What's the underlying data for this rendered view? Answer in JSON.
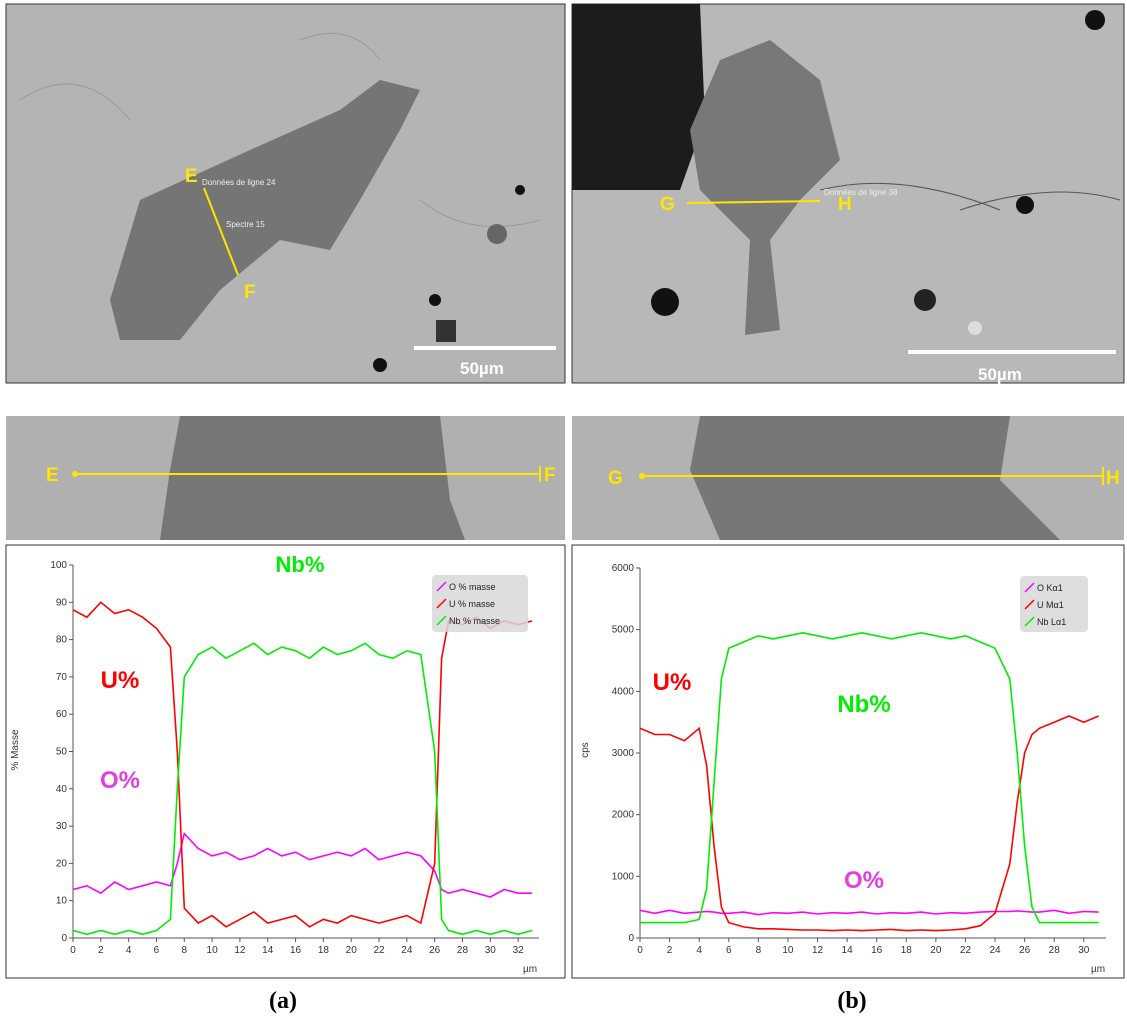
{
  "images": [
    {
      "start": "E",
      "end": "F",
      "line_label": "Données de ligne 24",
      "spectrum_label": "Spectre 15",
      "scale_bar": "50µm"
    },
    {
      "start": "G",
      "end": "H",
      "line_label": "Données de ligne 38",
      "scale_bar": "50µm"
    }
  ],
  "strips": [
    {
      "start": "E",
      "end": "F"
    },
    {
      "start": "G",
      "end": "H"
    }
  ],
  "captions": [
    "(a)",
    "(b)"
  ],
  "chart_data": [
    {
      "type": "line",
      "ylabel": "% Masse",
      "xlabel": "µm",
      "xlim": [
        0,
        33.5
      ],
      "ylim": [
        0,
        100
      ],
      "xticks": [
        0,
        2,
        4,
        6,
        8,
        10,
        12,
        14,
        16,
        18,
        20,
        22,
        24,
        26,
        28,
        30,
        32
      ],
      "yticks": [
        0,
        10,
        20,
        30,
        40,
        50,
        60,
        70,
        80,
        90,
        100
      ],
      "x": [
        0,
        1,
        2,
        3,
        4,
        5,
        6,
        7,
        7.5,
        8,
        9,
        10,
        11,
        12,
        13,
        14,
        15,
        16,
        17,
        18,
        19,
        20,
        21,
        22,
        23,
        24,
        25,
        26,
        26.5,
        27,
        28,
        29,
        30,
        31,
        32,
        33
      ],
      "series": [
        {
          "name": "O % masse",
          "color": "#ff00ff",
          "values": [
            13,
            14,
            12,
            15,
            13,
            14,
            15,
            14,
            20,
            28,
            24,
            22,
            23,
            21,
            22,
            24,
            22,
            23,
            21,
            22,
            23,
            22,
            24,
            21,
            22,
            23,
            22,
            18,
            13,
            12,
            13,
            12,
            11,
            13,
            12,
            12
          ]
        },
        {
          "name": "U % masse",
          "color": "#ff0000",
          "values": [
            88,
            86,
            90,
            87,
            88,
            86,
            83,
            78,
            50,
            8,
            4,
            6,
            3,
            5,
            7,
            4,
            5,
            6,
            3,
            5,
            4,
            6,
            5,
            4,
            5,
            6,
            4,
            20,
            75,
            85,
            84,
            86,
            83,
            85,
            84,
            85
          ]
        },
        {
          "name": "Nb % masse",
          "color": "#00ee00",
          "values": [
            2,
            1,
            2,
            1,
            2,
            1,
            2,
            5,
            40,
            70,
            76,
            78,
            75,
            77,
            79,
            76,
            78,
            77,
            75,
            78,
            76,
            77,
            79,
            76,
            75,
            77,
            76,
            50,
            5,
            2,
            1,
            2,
            1,
            2,
            1,
            2
          ]
        }
      ],
      "annotations": [
        {
          "text": "Nb%",
          "color": "#00ee00"
        },
        {
          "text": "U%",
          "color": "#ff0000"
        },
        {
          "text": "O%",
          "color": "#e040e0"
        }
      ]
    },
    {
      "type": "line",
      "ylabel": "cps",
      "xlabel": "µm",
      "xlim": [
        0,
        31.5
      ],
      "ylim": [
        0,
        6000
      ],
      "xticks": [
        0,
        2,
        4,
        6,
        8,
        10,
        12,
        14,
        16,
        18,
        20,
        22,
        24,
        26,
        28,
        30
      ],
      "yticks": [
        0,
        1000,
        2000,
        3000,
        4000,
        5000,
        6000
      ],
      "x": [
        0,
        1,
        2,
        3,
        4,
        4.5,
        5,
        5.5,
        6,
        7,
        8,
        9,
        10,
        11,
        12,
        13,
        14,
        15,
        16,
        17,
        18,
        19,
        20,
        21,
        22,
        23,
        24,
        25,
        25.5,
        26,
        26.5,
        27,
        28,
        29,
        30,
        31
      ],
      "series": [
        {
          "name": "O Kα1",
          "color": "#ff00ff",
          "values": [
            450,
            400,
            450,
            400,
            420,
            430,
            420,
            400,
            400,
            420,
            380,
            410,
            400,
            420,
            390,
            410,
            400,
            420,
            390,
            410,
            400,
            420,
            390,
            410,
            400,
            420,
            430,
            430,
            440,
            430,
            420,
            420,
            450,
            400,
            430,
            420
          ]
        },
        {
          "name": "U Mα1",
          "color": "#ff0000",
          "values": [
            3400,
            3300,
            3300,
            3200,
            3400,
            2800,
            1500,
            500,
            250,
            180,
            150,
            150,
            140,
            130,
            130,
            120,
            130,
            120,
            130,
            140,
            120,
            130,
            120,
            130,
            150,
            200,
            400,
            1200,
            2200,
            3000,
            3300,
            3400,
            3500,
            3600,
            3500,
            3600
          ]
        },
        {
          "name": "Nb Lα1",
          "color": "#00ee00",
          "values": [
            250,
            250,
            250,
            250,
            300,
            800,
            2500,
            4200,
            4700,
            4800,
            4900,
            4850,
            4900,
            4950,
            4900,
            4850,
            4900,
            4950,
            4900,
            4850,
            4900,
            4950,
            4900,
            4850,
            4900,
            4800,
            4700,
            4200,
            3000,
            1500,
            500,
            250,
            250,
            250,
            250,
            250
          ]
        }
      ],
      "annotations": [
        {
          "text": "U%",
          "color": "#ff0000"
        },
        {
          "text": "Nb%",
          "color": "#00ee00"
        },
        {
          "text": "O%",
          "color": "#e040e0"
        }
      ]
    }
  ]
}
